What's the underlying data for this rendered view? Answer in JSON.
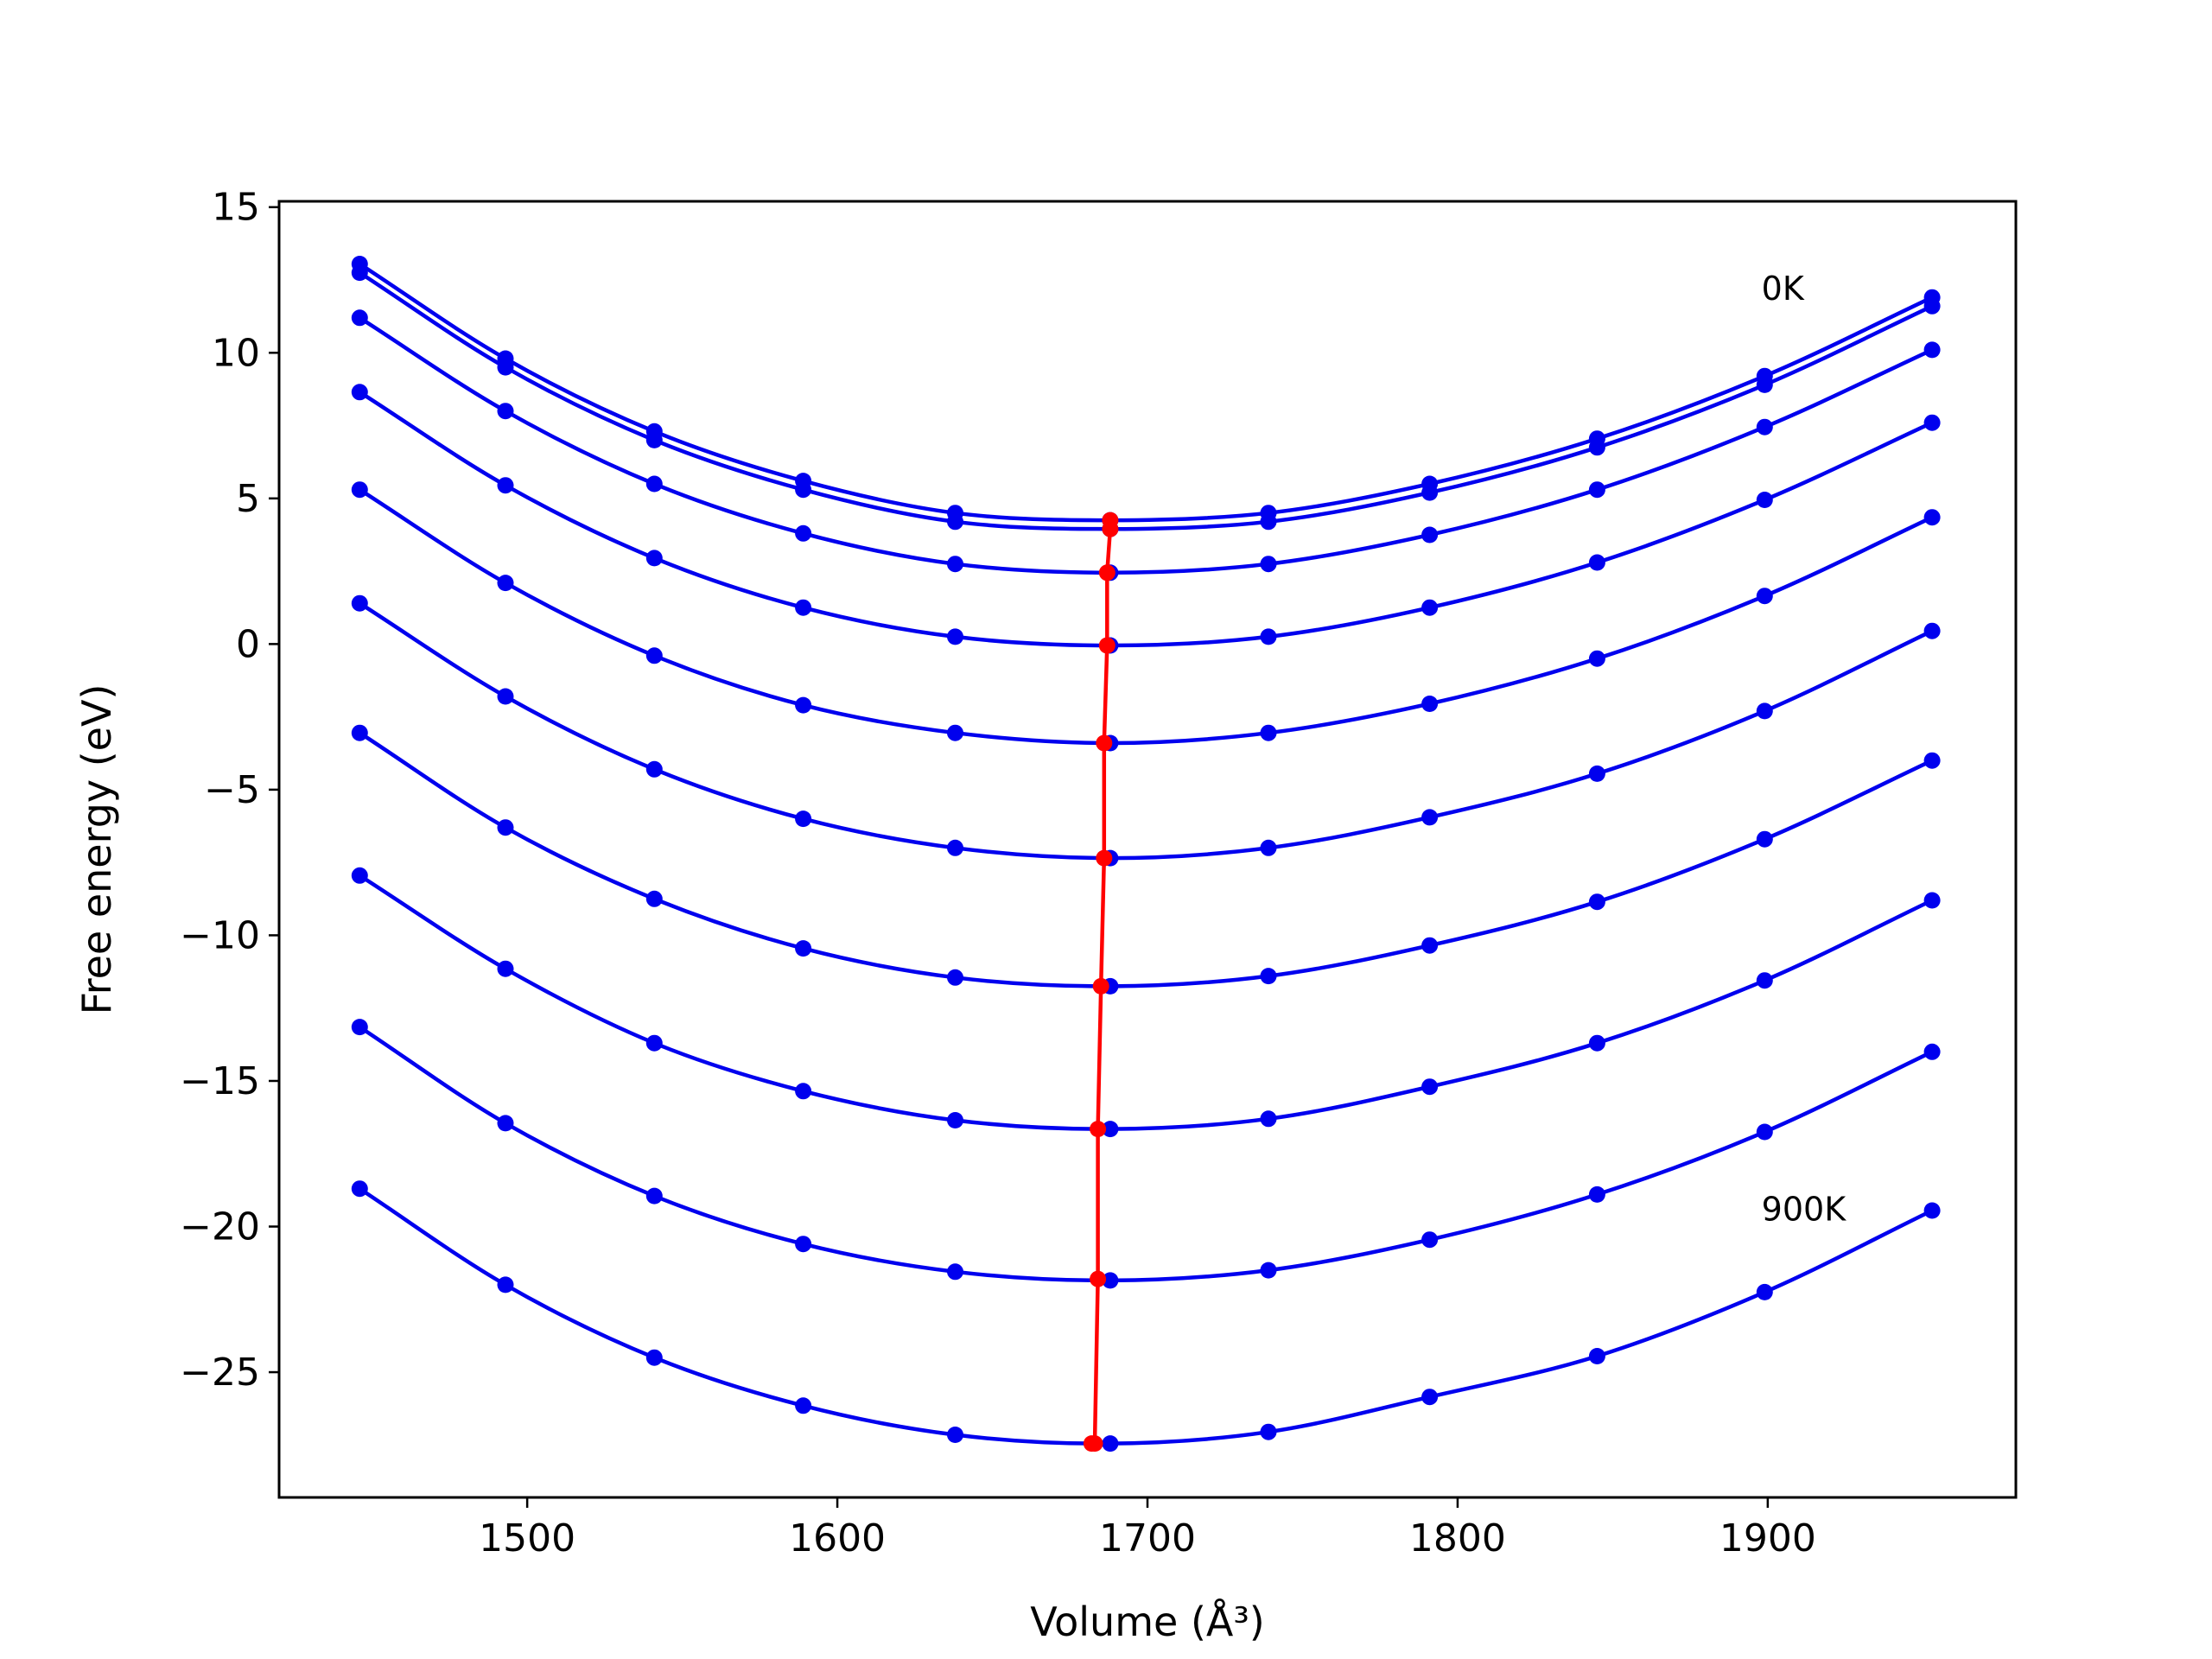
{
  "chart_data": {
    "type": "line",
    "title": "",
    "xlabel": "Volume (Å³)",
    "ylabel": "Free energy (eV)",
    "xlim": [
      1420,
      1980
    ],
    "ylim": [
      -29.3,
      15.2
    ],
    "xticks": [
      1500,
      1600,
      1700,
      1800,
      1900
    ],
    "xtick_labels": [
      "1500",
      "1600",
      "1700",
      "1800",
      "1900"
    ],
    "yticks": [
      15,
      10,
      5,
      0,
      -5,
      -10,
      -15,
      -20,
      -25
    ],
    "ytick_labels": [
      "15",
      "10",
      "5",
      "0",
      "−5",
      "−10",
      "−15",
      "−20",
      "−25"
    ],
    "grid": false,
    "legend": "none",
    "x": [
      1446,
      1493,
      1541,
      1589,
      1638,
      1688,
      1739,
      1791,
      1845,
      1899,
      1953
    ],
    "series": [
      {
        "values": [
          13.05,
          9.8,
          7.3,
          5.6,
          4.5,
          4.25,
          4.5,
          5.5,
          7.05,
          9.2,
          11.9
        ],
        "color": "#0000ee"
      },
      {
        "values": [
          12.75,
          9.5,
          7.0,
          5.3,
          4.2,
          3.95,
          4.2,
          5.2,
          6.75,
          8.9,
          11.6
        ],
        "color": "#0000ee"
      },
      {
        "values": [
          11.2,
          8.0,
          5.5,
          3.8,
          2.75,
          2.45,
          2.75,
          3.75,
          5.3,
          7.45,
          10.1
        ],
        "color": "#0000ee"
      },
      {
        "values": [
          8.65,
          5.45,
          2.95,
          1.25,
          0.25,
          -0.05,
          0.25,
          1.25,
          2.8,
          4.95,
          7.6
        ],
        "color": "#0000ee"
      },
      {
        "values": [
          5.3,
          2.1,
          -0.4,
          -2.1,
          -3.05,
          -3.4,
          -3.05,
          -2.05,
          -0.5,
          1.65,
          4.35
        ],
        "color": "#0000ee"
      },
      {
        "values": [
          1.4,
          -1.8,
          -4.3,
          -6.0,
          -7.0,
          -7.35,
          -7.0,
          -5.95,
          -4.45,
          -2.3,
          0.45
        ],
        "color": "#0000ee"
      },
      {
        "values": [
          -3.05,
          -6.3,
          -8.75,
          -10.45,
          -11.45,
          -11.75,
          -11.4,
          -10.35,
          -8.85,
          -6.7,
          -4.0
        ],
        "color": "#0000ee"
      },
      {
        "values": [
          -7.95,
          -11.15,
          -13.7,
          -15.35,
          -16.35,
          -16.65,
          -16.3,
          -15.2,
          -13.7,
          -11.55,
          -8.8
        ],
        "color": "#0000ee"
      },
      {
        "values": [
          -13.15,
          -16.45,
          -18.95,
          -20.6,
          -21.55,
          -21.85,
          -21.5,
          -20.45,
          -18.9,
          -16.75,
          -14.0
        ],
        "color": "#0000ee"
      },
      {
        "values": [
          -18.7,
          -22.0,
          -24.5,
          -26.15,
          -27.15,
          -27.45,
          -27.05,
          -25.85,
          -24.45,
          -22.25,
          -19.45
        ],
        "color": "#0000ee"
      }
    ],
    "minimum_curve": {
      "color": "#ff0000",
      "x": [
        1688,
        1688,
        1687,
        1687,
        1686,
        1686,
        1685,
        1684,
        1684,
        1683,
        1682
      ],
      "y": [
        4.25,
        3.95,
        2.45,
        -0.05,
        -3.4,
        -7.35,
        -11.75,
        -16.65,
        -21.8,
        -27.45,
        -27.45
      ]
    },
    "annotations": [
      {
        "text": "0K",
        "x": 1898,
        "y": 12.2
      },
      {
        "text": "900K",
        "x": 1898,
        "y": -19.4
      }
    ]
  }
}
